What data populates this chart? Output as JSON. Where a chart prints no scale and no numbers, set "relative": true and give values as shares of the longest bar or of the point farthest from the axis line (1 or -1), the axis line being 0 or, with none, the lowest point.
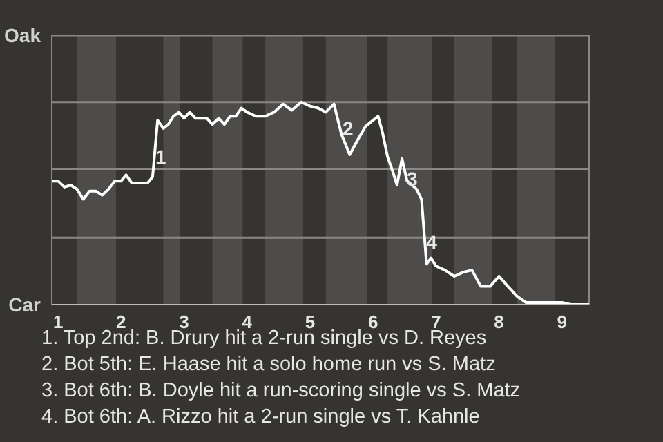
{
  "chart_data": {
    "type": "line",
    "relative": true,
    "x": [
      0.9,
      1,
      1.1,
      1.2,
      1.3,
      1.4,
      1.5,
      1.6,
      1.7,
      1.8,
      1.9,
      2,
      2.08,
      2.17,
      2.25,
      2.33,
      2.42,
      2.5,
      2.58,
      2.67,
      2.75,
      2.83,
      2.92,
      3,
      3.09,
      3.18,
      3.27,
      3.36,
      3.45,
      3.55,
      3.64,
      3.73,
      3.82,
      3.91,
      4,
      4.14,
      4.29,
      4.43,
      4.57,
      4.71,
      4.86,
      5,
      5.13,
      5.25,
      5.38,
      5.5,
      5.63,
      5.75,
      5.88,
      6,
      6.08,
      6.15,
      6.23,
      6.31,
      6.38,
      6.46,
      6.54,
      6.62,
      6.69,
      6.77,
      6.85,
      6.92,
      7,
      7.14,
      7.29,
      7.43,
      7.57,
      7.71,
      7.86,
      8,
      8.14,
      8.29,
      8.43,
      8.57,
      8.71,
      8.86,
      9,
      9.14,
      9.29,
      9.43
    ],
    "series": [
      {
        "color": "#ffffff",
        "values": [
          0.61,
          0.61,
          0.58,
          0.59,
          0.57,
          0.52,
          0.56,
          0.56,
          0.54,
          0.57,
          0.61,
          0.61,
          0.64,
          0.6,
          0.6,
          0.6,
          0.6,
          0.63,
          0.91,
          0.87,
          0.89,
          0.93,
          0.95,
          0.92,
          0.95,
          0.92,
          0.92,
          0.92,
          0.89,
          0.92,
          0.89,
          0.93,
          0.93,
          0.97,
          0.95,
          0.93,
          0.93,
          0.95,
          0.99,
          0.96,
          1,
          0.98,
          0.97,
          0.95,
          0.99,
          0.84,
          0.74,
          0.81,
          0.88,
          0.91,
          0.93,
          0.85,
          0.73,
          0.66,
          0.59,
          0.72,
          0.61,
          0.59,
          0.57,
          0.52,
          0.2,
          0.23,
          0.19,
          0.17,
          0.14,
          0.16,
          0.17,
          0.09,
          0.09,
          0.14,
          0.09,
          0.04,
          0.01,
          0.01,
          0.01,
          0.01,
          0.01,
          0,
          0,
          0
        ]
      }
    ],
    "xlim": [
      0.9,
      9.43
    ],
    "xticks": [
      1,
      2,
      3,
      4,
      5,
      6,
      7,
      8,
      9
    ],
    "ref_lines": [
      {
        "axis": "y",
        "value": 0.33,
        "color": "#8a8885"
      },
      {
        "axis": "y",
        "value": 0.67,
        "color": "#8a8885"
      },
      {
        "axis": "y",
        "value": 1,
        "color": "#8a8885"
      },
      {
        "axis": "y",
        "value": 1.33,
        "color": "#8a8885"
      }
    ],
    "bands": [
      {
        "axis": "x",
        "from": 1.3,
        "to": 1.92,
        "color": "#4d4c4a"
      },
      {
        "axis": "x",
        "from": 2.67,
        "to": 2.93,
        "color": "#4d4c4a"
      },
      {
        "axis": "x",
        "from": 3.45,
        "to": 3.93,
        "color": "#4d4c4a"
      },
      {
        "axis": "x",
        "from": 4.29,
        "to": 4.89,
        "color": "#4d4c4a"
      },
      {
        "axis": "x",
        "from": 5.25,
        "to": 5.9,
        "color": "#4d4c4a"
      },
      {
        "axis": "x",
        "from": 6.23,
        "to": 6.94,
        "color": "#4d4c4a"
      },
      {
        "axis": "x",
        "from": 7.29,
        "to": 7.89,
        "color": "#4d4c4a"
      },
      {
        "axis": "x",
        "from": 8.29,
        "to": 8.89,
        "color": "#4d4c4a"
      }
    ],
    "annotations": [
      "Oak",
      "Car",
      {
        "text": "1",
        "x": 2.63,
        "y": 0.73
      },
      {
        "text": "2",
        "x": 5.6,
        "y": 0.87
      },
      {
        "text": "3",
        "x": 6.62,
        "y": 0.62
      },
      {
        "text": "4",
        "x": 6.93,
        "y": 0.31
      },
      "1. Top 2nd: B. Drury hit a 2-run single vs D. Reyes",
      "2. Bot 5th: E. Haase hit a solo home run vs S. Matz",
      "3. Bot 6th: B. Doyle hit a run-scoring single vs S. Matz",
      "4. Bot 6th: A. Rizzo hit a 2-run single vs T. Kahnle"
    ]
  }
}
